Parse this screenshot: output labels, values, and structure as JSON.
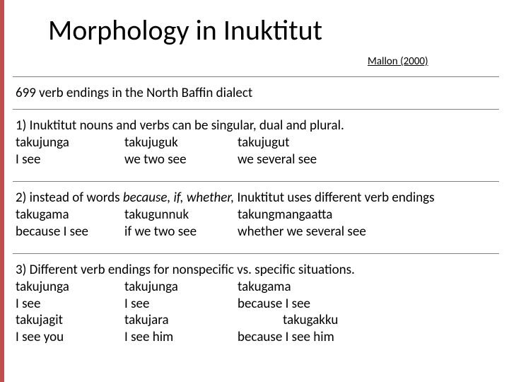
{
  "title": "Morphology in Inuktitut",
  "citation": "Mallon (2000)",
  "intro": "699 verb endings in the North Baffin dialect",
  "sections": [
    {
      "headline_pre": "1) Inuktitut nouns and verbs can be singular, dual and plural.",
      "rows": [
        {
          "c1": "takujunga",
          "c2": "takujuguk",
          "c3": "takujugut"
        },
        {
          "c1": "I see",
          "c2": "we two see",
          "c3": "we several see"
        }
      ]
    },
    {
      "headline_pre": "2) instead of words ",
      "headline_italic": "because, if, whether,",
      "headline_post": " Inuktitut uses different verb endings",
      "rows": [
        {
          "c1": "takugama",
          "c2": "takugunnuk",
          "c3": "takungmangaatta"
        },
        {
          "c1": "because I see",
          "c2": "if we two see",
          "c3": "whether we several see"
        }
      ]
    },
    {
      "headline_pre": "3) Different verb endings for nonspecific vs. specific situations.",
      "rows": [
        {
          "c1": "takujunga",
          "c2": "takujunga",
          "c3": "takugama"
        },
        {
          "c1": "I see",
          "c2": "I see",
          "c3": "because I see"
        },
        {
          "c1": "takujagit",
          "c2": "takujara",
          "c3_indent": "takugakku"
        },
        {
          "c1": "I see you",
          "c2": "I see him",
          "c3": "because I see him"
        }
      ]
    }
  ]
}
